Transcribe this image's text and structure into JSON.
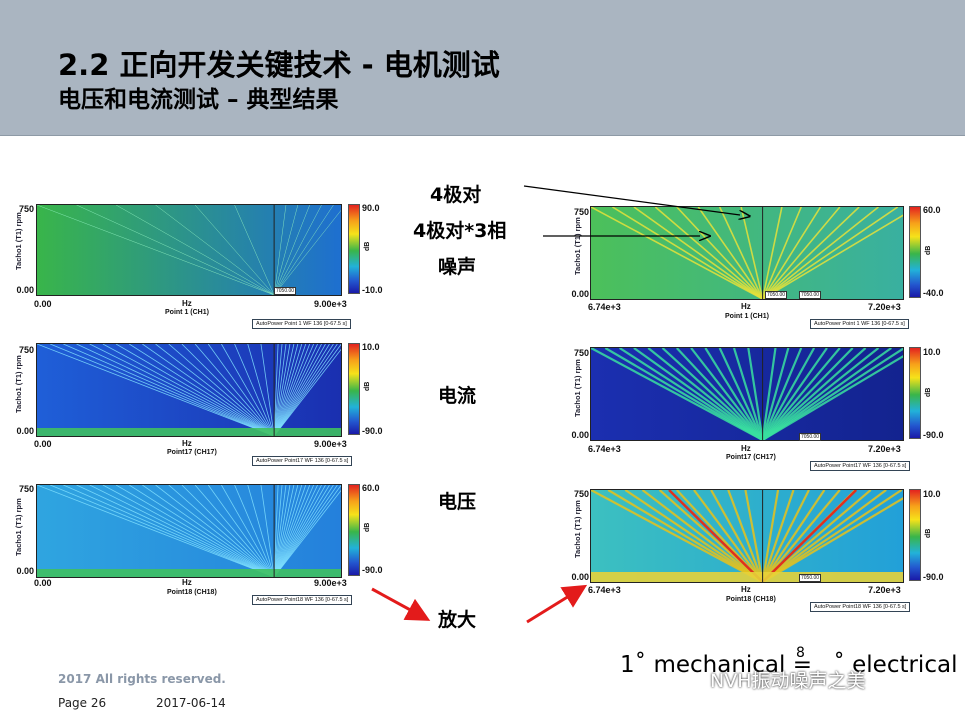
{
  "header": {
    "title": "2.2 正向开发关键技术 - 电机测试",
    "subtitle": "电压和电流测试 – 典型结果"
  },
  "labels": {
    "pole_pairs": "4极对",
    "pole_pairs_3phase": "4极对*3相",
    "noise": "噪声",
    "current": "电流",
    "voltage": "电压",
    "zoom": "放大"
  },
  "footer": {
    "rights": "2017 All rights reserved.",
    "page": "Page 26",
    "date": "2017-06-14",
    "formula_left": "1˚ mechanical = ",
    "formula_sup": "8",
    "formula_right": "˚ electrical",
    "watermark": "NVH振动噪声之美"
  },
  "colors": {
    "header_bg": "#aab5c1",
    "arrow_red": "#e31b1b"
  },
  "chart_data": [
    {
      "type": "heatmap",
      "id": "left-1",
      "ylabel": "Tacho1 (T1) rpm",
      "xlabel": "Hz",
      "point": "Point 1 (CH1)",
      "x_ticks": [
        "0.00",
        "9.00e+3"
      ],
      "y_ticks": [
        "750",
        "0.00"
      ],
      "xlim": [
        0,
        9000
      ],
      "ylim": [
        0,
        750
      ],
      "colorbar": {
        "max": "90.0",
        "min": "-10.0",
        "unit": "dB"
      },
      "legend": "AutoPower Point 1 WF 136 [0-67.5 s]",
      "cursor": "7050.00"
    },
    {
      "type": "heatmap",
      "id": "left-2",
      "ylabel": "Tacho1 (T1) rpm",
      "xlabel": "Hz",
      "point": "Point17 (CH17)",
      "x_ticks": [
        "0.00",
        "9.00e+3"
      ],
      "y_ticks": [
        "750",
        "0.00"
      ],
      "xlim": [
        0,
        9000
      ],
      "ylim": [
        0,
        750
      ],
      "colorbar": {
        "max": "10.0",
        "min": "-90.0",
        "unit": "dB"
      },
      "legend": "AutoPower Point17 WF 136 [0-67.5 s]"
    },
    {
      "type": "heatmap",
      "id": "left-3",
      "ylabel": "Tacho1 (T1) rpm",
      "xlabel": "Hz",
      "point": "Point18 (CH18)",
      "x_ticks": [
        "0.00",
        "9.00e+3"
      ],
      "y_ticks": [
        "750",
        "0.00"
      ],
      "xlim": [
        0,
        9000
      ],
      "ylim": [
        0,
        750
      ],
      "colorbar": {
        "max": "60.0",
        "min": "-90.0",
        "unit": "dB"
      },
      "legend": "AutoPower Point18 WF 136 [0-67.5 s]"
    },
    {
      "type": "heatmap",
      "id": "right-1",
      "ylabel": "Tacho1 (T1) rpm",
      "xlabel": "Hz",
      "point": "Point 1 (CH1)",
      "x_ticks": [
        "6.74e+3",
        "7.20e+3"
      ],
      "y_ticks": [
        "750",
        "0.00"
      ],
      "xlim": [
        6740,
        7200
      ],
      "ylim": [
        0,
        750
      ],
      "colorbar": {
        "max": "60.0",
        "min": "-40.0",
        "unit": "dB"
      },
      "legend": "AutoPower Point 1 WF 136 [0-67.5 s]",
      "cursor": "7050.00",
      "cursor2": "7050.00"
    },
    {
      "type": "heatmap",
      "id": "right-2",
      "ylabel": "Tacho1 (T1) rpm",
      "xlabel": "Hz",
      "point": "Point17 (CH17)",
      "x_ticks": [
        "6.74e+3",
        "7.20e+3"
      ],
      "y_ticks": [
        "750",
        "0.00"
      ],
      "xlim": [
        6740,
        7200
      ],
      "ylim": [
        0,
        750
      ],
      "colorbar": {
        "max": "10.0",
        "min": "-90.0",
        "unit": "dB"
      },
      "legend": "AutoPower Point17 WF 136 [0-67.5 s]",
      "cursor": "7050.00"
    },
    {
      "type": "heatmap",
      "id": "right-3",
      "ylabel": "Tacho1 (T1) rpm",
      "xlabel": "Hz",
      "point": "Point18 (CH18)",
      "x_ticks": [
        "6.74e+3",
        "7.20e+3"
      ],
      "y_ticks": [
        "750",
        "0.00"
      ],
      "xlim": [
        6740,
        7200
      ],
      "ylim": [
        0,
        750
      ],
      "colorbar": {
        "max": "10.0",
        "min": "-90.0",
        "unit": "dB"
      },
      "legend": "AutoPower Point18 WF 136 [0-67.5 s]",
      "cursor": "7050.00"
    }
  ]
}
